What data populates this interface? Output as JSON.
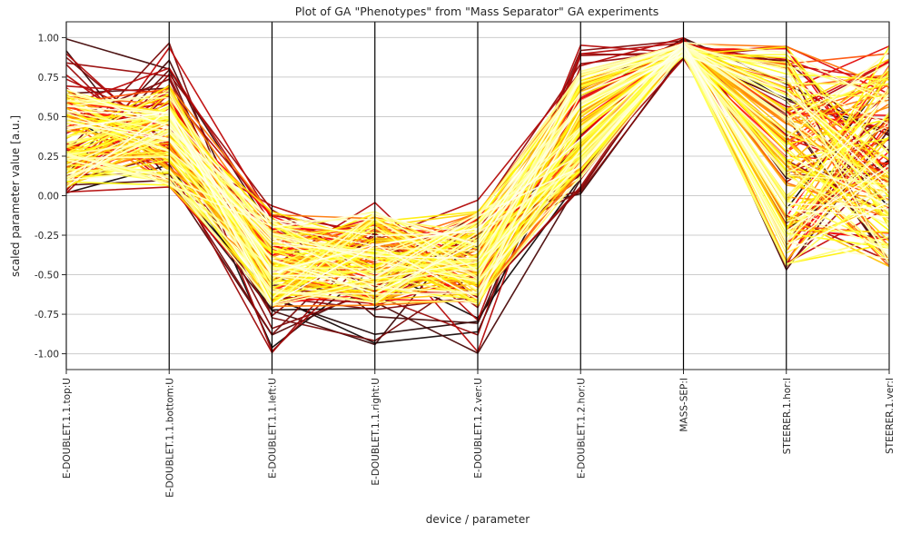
{
  "chart_data": {
    "type": "parallel_coordinates",
    "title": "Plot of GA \"Phenotypes\" from \"Mass Separator\" GA experiments",
    "xlabel": "device / parameter",
    "ylabel": "scaled parameter value [a.u.]",
    "ylim": [
      -1.1,
      1.1
    ],
    "yticks": [
      1.0,
      0.75,
      0.5,
      0.25,
      0.0,
      -0.25,
      -0.5,
      -0.75,
      -1.0
    ],
    "ytick_labels": [
      "1.00",
      "0.75",
      "0.50",
      "0.25",
      "0.00",
      "-0.25",
      "-0.50",
      "-0.75",
      "-1.00"
    ],
    "grid": true,
    "colormap": "hot",
    "categories": [
      "E-DOUBLET.1.1.top:U",
      "E-DOUBLET.1.1.bottom:U",
      "E-DOUBLET.1.1.left:U",
      "E-DOUBLET.1.1.right:U",
      "E-DOUBLET.1.2.ver:U",
      "E-DOUBLET.1.2.hor:U",
      "MASS-SEP:I",
      "STEERER.1.hor:I",
      "STEERER.1.ver:I"
    ],
    "series_summary": [
      {
        "name": "E-DOUBLET.1.1.top:U",
        "min": 0.0,
        "max": 1.0,
        "typical": [
          0.05,
          0.7
        ]
      },
      {
        "name": "E-DOUBLET.1.1.bottom:U",
        "min": 0.02,
        "max": 1.0,
        "typical": [
          0.05,
          0.7
        ]
      },
      {
        "name": "E-DOUBLET.1.1.left:U",
        "min": -1.0,
        "max": -0.02,
        "typical": [
          -0.7,
          -0.1
        ]
      },
      {
        "name": "E-DOUBLET.1.1.right:U",
        "min": -1.0,
        "max": 0.0,
        "typical": [
          -0.7,
          -0.1
        ]
      },
      {
        "name": "E-DOUBLET.1.2.ver:U",
        "min": -1.0,
        "max": -0.02,
        "typical": [
          -0.7,
          -0.1
        ]
      },
      {
        "name": "E-DOUBLET.1.2.hor:U",
        "min": 0.0,
        "max": 1.0,
        "typical": [
          0.1,
          0.8
        ]
      },
      {
        "name": "MASS-SEP:I",
        "min": 0.85,
        "max": 1.0,
        "typical": [
          0.88,
          0.97
        ]
      },
      {
        "name": "STEERER.1.hor:I",
        "min": -0.5,
        "max": 1.0,
        "typical": [
          -0.45,
          0.95
        ]
      },
      {
        "name": "STEERER.1.ver:I",
        "min": -0.5,
        "max": 1.0,
        "typical": [
          -0.45,
          0.95
        ]
      }
    ],
    "n_lines": 160
  }
}
